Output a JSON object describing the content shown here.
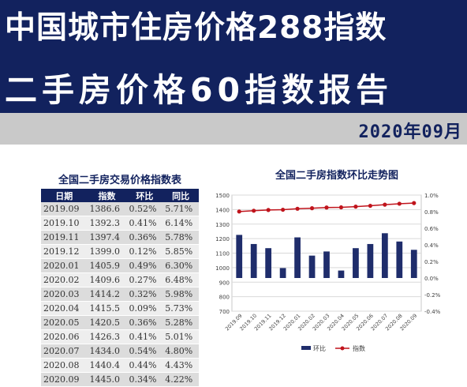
{
  "header": {
    "title_line1": "中国城市住房价格288指数",
    "title_line2": "二手房价格60指数报告",
    "date": "2020年09月"
  },
  "table": {
    "title": "全国二手房交易价格指数表",
    "columns": [
      "日期",
      "指数",
      "环比",
      "同比"
    ],
    "rows": [
      [
        "2019.09",
        "1386.6",
        "0.52%",
        "5.71%"
      ],
      [
        "2019.10",
        "1392.3",
        "0.41%",
        "6.14%"
      ],
      [
        "2019.11",
        "1397.4",
        "0.36%",
        "5.78%"
      ],
      [
        "2019.12",
        "1399.0",
        "0.12%",
        "5.85%"
      ],
      [
        "2020.01",
        "1405.9",
        "0.49%",
        "6.30%"
      ],
      [
        "2020.02",
        "1409.6",
        "0.27%",
        "6.48%"
      ],
      [
        "2020.03",
        "1414.2",
        "0.32%",
        "5.98%"
      ],
      [
        "2020.04",
        "1415.5",
        "0.09%",
        "5.73%"
      ],
      [
        "2020.05",
        "1420.5",
        "0.36%",
        "5.28%"
      ],
      [
        "2020.06",
        "1426.3",
        "0.41%",
        "5.01%"
      ],
      [
        "2020.07",
        "1434.0",
        "0.54%",
        "4.80%"
      ],
      [
        "2020.08",
        "1440.4",
        "0.44%",
        "4.43%"
      ],
      [
        "2020.09",
        "1445.0",
        "0.34%",
        "4.22%"
      ]
    ]
  },
  "chart_data": {
    "type": "bar",
    "title": "全国二手房指数环比走势图",
    "categories": [
      "2019.09",
      "2019.10",
      "2019.11",
      "2019.12",
      "2020.01",
      "2020.02",
      "2020.03",
      "2020.04",
      "2020.05",
      "2020.06",
      "2020.07",
      "2020.08",
      "2020.09"
    ],
    "series": [
      {
        "name": "环比",
        "type": "bar",
        "axis": "right",
        "color": "#1f2d6b",
        "values": [
          0.52,
          0.41,
          0.36,
          0.12,
          0.49,
          0.27,
          0.32,
          0.09,
          0.36,
          0.41,
          0.54,
          0.44,
          0.34
        ]
      },
      {
        "name": "指数",
        "type": "line",
        "axis": "left",
        "color": "#c0141c",
        "values": [
          1386.6,
          1392.3,
          1397.4,
          1399.0,
          1405.9,
          1409.6,
          1414.2,
          1415.5,
          1420.5,
          1426.3,
          1434.0,
          1440.4,
          1445.0
        ]
      }
    ],
    "y_left": {
      "min": 700,
      "max": 1500,
      "step": 100,
      "ticks": [
        "700",
        "800",
        "900",
        "1000",
        "1100",
        "1200",
        "1300",
        "1400",
        "1500"
      ]
    },
    "y_right": {
      "min": -0.4,
      "max": 1.0,
      "step": 0.2,
      "ticks": [
        "-0.4%",
        "-0.2%",
        "0.0%",
        "0.2%",
        "0.4%",
        "0.6%",
        "0.8%",
        "1.0%"
      ]
    },
    "grid": true,
    "legend_position": "bottom"
  }
}
